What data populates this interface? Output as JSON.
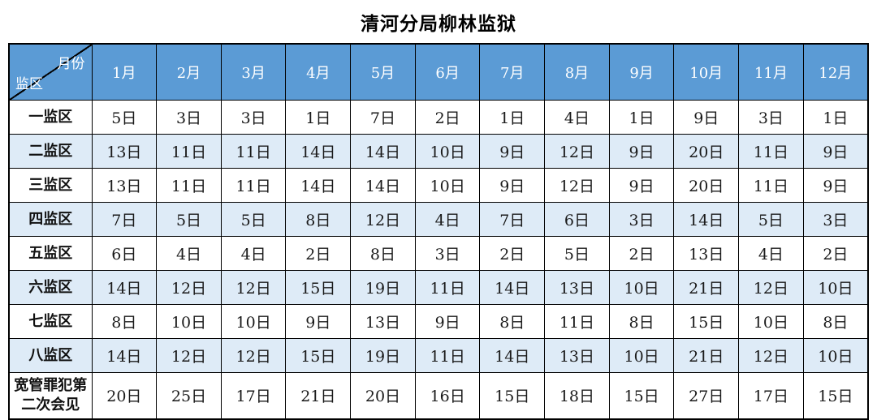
{
  "title": "清河分局柳林监狱",
  "colors": {
    "header_bg": "#5B9BD5",
    "header_text": "#FFFFFF",
    "row_alt_bg": "#DEEBF7",
    "row_bg": "#FFFFFF",
    "border": "#000000",
    "cell_text": "#1a1a1a"
  },
  "table": {
    "corner": {
      "top_right": "月份",
      "bottom_left": "监区"
    },
    "months": [
      "1月",
      "2月",
      "3月",
      "4月",
      "5月",
      "6月",
      "7月",
      "8月",
      "9月",
      "10月",
      "11月",
      "12月"
    ],
    "rows": [
      {
        "label": "一监区",
        "values": [
          "5日",
          "3日",
          "3日",
          "1日",
          "7日",
          "2日",
          "1日",
          "4日",
          "1日",
          "9日",
          "3日",
          "1日"
        ]
      },
      {
        "label": "二监区",
        "values": [
          "13日",
          "11日",
          "11日",
          "14日",
          "14日",
          "10日",
          "9日",
          "12日",
          "9日",
          "20日",
          "11日",
          "9日"
        ]
      },
      {
        "label": "三监区",
        "values": [
          "13日",
          "11日",
          "11日",
          "14日",
          "14日",
          "10日",
          "9日",
          "12日",
          "9日",
          "20日",
          "11日",
          "9日"
        ]
      },
      {
        "label": "四监区",
        "values": [
          "7日",
          "5日",
          "5日",
          "8日",
          "12日",
          "4日",
          "7日",
          "6日",
          "3日",
          "14日",
          "5日",
          "3日"
        ]
      },
      {
        "label": "五监区",
        "values": [
          "6日",
          "4日",
          "4日",
          "2日",
          "8日",
          "3日",
          "2日",
          "5日",
          "2日",
          "13日",
          "4日",
          "2日"
        ]
      },
      {
        "label": "六监区",
        "values": [
          "14日",
          "12日",
          "12日",
          "15日",
          "19日",
          "11日",
          "14日",
          "13日",
          "10日",
          "21日",
          "12日",
          "10日"
        ]
      },
      {
        "label": "七监区",
        "values": [
          "8日",
          "10日",
          "10日",
          "9日",
          "13日",
          "9日",
          "8日",
          "11日",
          "8日",
          "15日",
          "10日",
          "8日"
        ]
      },
      {
        "label": "八监区",
        "values": [
          "14日",
          "12日",
          "12日",
          "15日",
          "19日",
          "11日",
          "14日",
          "13日",
          "10日",
          "21日",
          "12日",
          "10日"
        ]
      },
      {
        "label": "宽管罪犯第二次会见",
        "values": [
          "20日",
          "25日",
          "17日",
          "21日",
          "20日",
          "16日",
          "15日",
          "18日",
          "15日",
          "27日",
          "17日",
          "15日"
        ]
      }
    ]
  }
}
